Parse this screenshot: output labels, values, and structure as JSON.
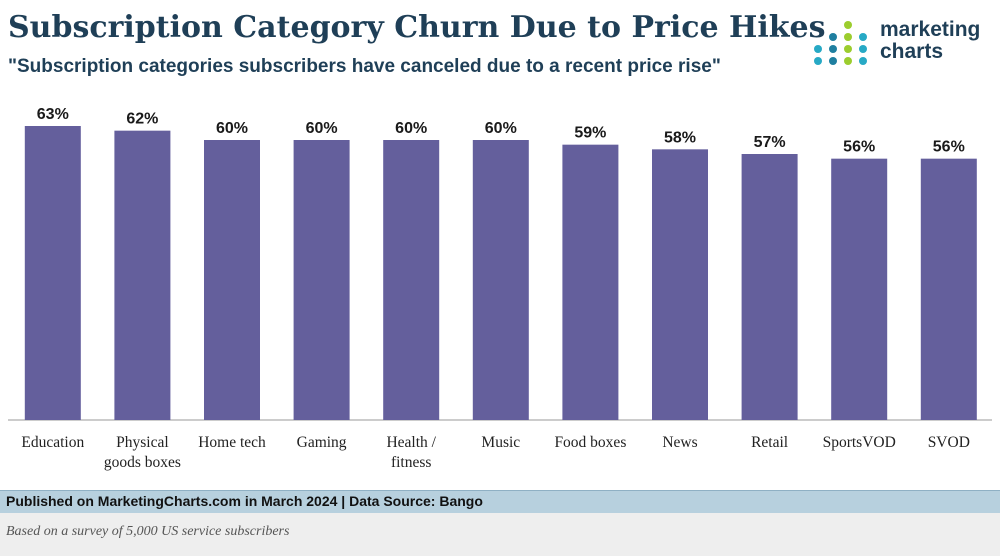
{
  "header": {
    "title": "Subscription Category Churn Due to Price Hikes",
    "subtitle": "\"Subscription categories subscribers have canceled due to a recent price rise\""
  },
  "logo": {
    "line1": "marketing",
    "line2": "charts",
    "dot_colors": [
      "#27a9c5",
      "#1f7fa0",
      "#9ccd2e",
      "#27a9c5"
    ]
  },
  "chart_data": {
    "type": "bar",
    "title": "Subscription Category Churn Due to Price Hikes",
    "subtitle": "\"Subscription categories subscribers have canceled due to a recent price rise\"",
    "categories": [
      "Education",
      "Physical goods boxes",
      "Home tech",
      "Gaming",
      "Health / fitness",
      "Music",
      "Food boxes",
      "News",
      "Retail",
      "SportsVOD",
      "SVOD"
    ],
    "category_lines": [
      [
        "Education"
      ],
      [
        "Physical",
        "goods boxes"
      ],
      [
        "Home tech"
      ],
      [
        "Gaming"
      ],
      [
        "Health /",
        "fitness"
      ],
      [
        "Music"
      ],
      [
        "Food boxes"
      ],
      [
        "News"
      ],
      [
        "Retail"
      ],
      [
        "SportsVOD"
      ],
      [
        "SVOD"
      ]
    ],
    "values": [
      63,
      62,
      60,
      60,
      60,
      60,
      59,
      58,
      57,
      56,
      56
    ],
    "value_labels": [
      "63%",
      "62%",
      "60%",
      "60%",
      "60%",
      "60%",
      "59%",
      "58%",
      "57%",
      "56%",
      "56%"
    ],
    "unit": "%",
    "xlabel": "",
    "ylabel": "",
    "ylim": [
      0,
      63
    ],
    "grid": false,
    "bar_color": "#645f9c"
  },
  "footer": {
    "published": "Published on MarketingCharts.com in March 2024 | Data Source: Bango",
    "note": "Based on a survey of 5,000 US service subscribers"
  }
}
